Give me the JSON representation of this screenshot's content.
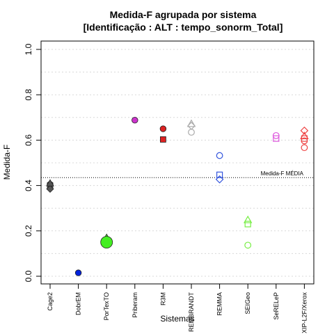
{
  "chart_data": {
    "type": "scatter",
    "title_line1": "Medida-F agrupada por sistema",
    "title_line2": "[Identificação : ALT : tempo_sonorm_Total]",
    "xlabel": "Sistemas",
    "ylabel": "Medida-F",
    "ylim": [
      0,
      1
    ],
    "yticks": [
      0.0,
      0.2,
      0.4,
      0.6,
      0.8,
      1.0
    ],
    "ytick_labels": [
      "0.0",
      "0.2",
      "0.4",
      "0.6",
      "0.8",
      "1.0"
    ],
    "grid": "horizontal dotted",
    "reference_line": {
      "label": "Medida-F MÉDIA",
      "value": 0.435
    },
    "categories": [
      "Cage2",
      "DobrEM",
      "PorTexTO",
      "Priberam",
      "R3M",
      "REMBRANDT",
      "REMMA",
      "SEIGeo",
      "SeRELeP",
      "XIP-L2F/Xerox"
    ],
    "series": [
      {
        "category": "Cage2",
        "color": "#555555",
        "filled": true,
        "points": [
          {
            "shape": "circle",
            "y": 0.405
          },
          {
            "shape": "square",
            "y": 0.4
          },
          {
            "shape": "diamond",
            "y": 0.385
          },
          {
            "shape": "triangle",
            "y": 0.41
          }
        ]
      },
      {
        "category": "DobrEM",
        "color": "#0022dd",
        "filled": true,
        "points": [
          {
            "shape": "circle",
            "y": 0.015
          }
        ]
      },
      {
        "category": "PorTexTO",
        "color": "#44ee22",
        "filled": true,
        "points": [
          {
            "shape": "triangle",
            "y": 0.17
          },
          {
            "shape": "diamond",
            "y": 0.16
          },
          {
            "shape": "square",
            "y": 0.155
          },
          {
            "shape": "bigcircle",
            "y": 0.15
          }
        ]
      },
      {
        "category": "Priberam",
        "color": "#cc33cc",
        "filled": true,
        "points": [
          {
            "shape": "circle",
            "y": 0.688
          }
        ]
      },
      {
        "category": "R3M",
        "color": "#dd2222",
        "filled": true,
        "points": [
          {
            "shape": "circle",
            "y": 0.65
          },
          {
            "shape": "square",
            "y": 0.603
          }
        ]
      },
      {
        "category": "REMBRANDT",
        "color": "#aaaaaa",
        "filled": false,
        "points": [
          {
            "shape": "triangle",
            "y": 0.672
          },
          {
            "shape": "diamond",
            "y": 0.663
          },
          {
            "shape": "circle",
            "y": 0.635
          }
        ]
      },
      {
        "category": "REMMA",
        "color": "#3355dd",
        "filled": false,
        "points": [
          {
            "shape": "circle",
            "y": 0.532
          },
          {
            "shape": "square",
            "y": 0.447
          },
          {
            "shape": "diamond",
            "y": 0.427
          }
        ]
      },
      {
        "category": "SEIGeo",
        "color": "#77ee44",
        "filled": false,
        "points": [
          {
            "shape": "triangle",
            "y": 0.248
          },
          {
            "shape": "square",
            "y": 0.23
          },
          {
            "shape": "circle",
            "y": 0.137
          }
        ]
      },
      {
        "category": "SeRELeP",
        "color": "#dd55dd",
        "filled": false,
        "points": [
          {
            "shape": "circle",
            "y": 0.62
          },
          {
            "shape": "square",
            "y": 0.607
          }
        ]
      },
      {
        "category": "XIP-L2F/Xerox",
        "color": "#ee4444",
        "filled": false,
        "points": [
          {
            "shape": "diamond",
            "y": 0.642
          },
          {
            "shape": "triangle",
            "y": 0.618
          },
          {
            "shape": "square",
            "y": 0.607
          },
          {
            "shape": "circle",
            "y": 0.597
          },
          {
            "shape": "circle",
            "y": 0.567
          }
        ]
      }
    ]
  }
}
